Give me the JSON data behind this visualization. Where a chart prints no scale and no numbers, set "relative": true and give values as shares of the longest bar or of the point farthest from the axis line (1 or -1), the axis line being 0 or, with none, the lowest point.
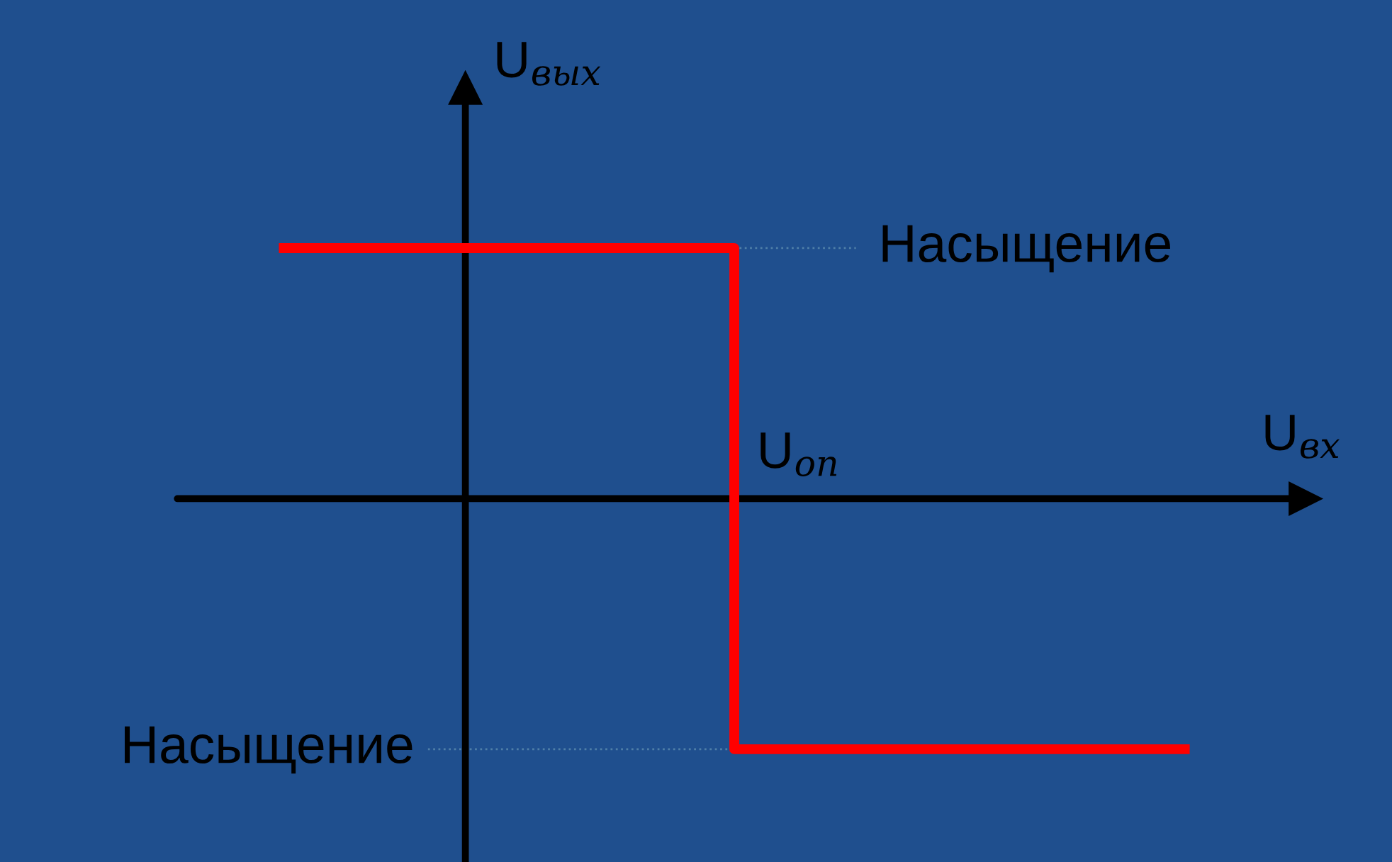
{
  "chart_data": {
    "type": "step",
    "relative": true,
    "xlabel": "U$_{вх}$",
    "ylabel": "U$_{вых}$",
    "categories": [
      null,
      null,
      null
    ],
    "series": [
      {
        "color": "#ff0000",
        "values": [
          1,
          -1,
          -1
        ]
      }
    ],
    "annotations": [
      "U$_{оп}$"
    ],
    "ref_lines": [
      {
        "axis": "y",
        "value": 1,
        "label": "Насыщение",
        "color": "#4f7fa8",
        "line_style": "dotted"
      },
      {
        "axis": "y",
        "value": -1,
        "label": "Насыщение",
        "color": "#4f7fa8",
        "line_style": "dotted"
      }
    ]
  }
}
